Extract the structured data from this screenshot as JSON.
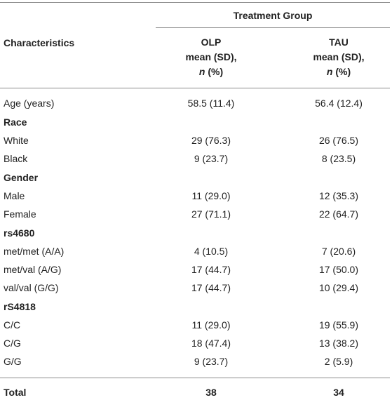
{
  "header": {
    "group_title": "Treatment Group",
    "characteristics": "Characteristics",
    "olp": {
      "line1": "OLP",
      "line2": "mean (SD),",
      "line3_n": "n",
      "line3_pct": " (%)"
    },
    "tau": {
      "line1": "TAU",
      "line2": "mean (SD),",
      "line3_n": "n",
      "line3_pct": " (%)"
    }
  },
  "rows": [
    {
      "label": "Age (years)",
      "olp": "58.5 (11.4)",
      "tau": "56.4 (12.4)",
      "section": false
    },
    {
      "label": "Race",
      "olp": "",
      "tau": "",
      "section": true
    },
    {
      "label": "White",
      "olp": "29 (76.3)",
      "tau": "26 (76.5)",
      "section": false
    },
    {
      "label": "Black",
      "olp": "9 (23.7)",
      "tau": "8 (23.5)",
      "section": false
    },
    {
      "label": "Gender",
      "olp": "",
      "tau": "",
      "section": true
    },
    {
      "label": "Male",
      "olp": "11 (29.0)",
      "tau": "12 (35.3)",
      "section": false
    },
    {
      "label": "Female",
      "olp": "27 (71.1)",
      "tau": "22 (64.7)",
      "section": false
    },
    {
      "label": "rs4680",
      "olp": "",
      "tau": "",
      "section": true
    },
    {
      "label": "met/met (A/A)",
      "olp": "4 (10.5)",
      "tau": "7 (20.6)",
      "section": false
    },
    {
      "label": "met/val (A/G)",
      "olp": "17 (44.7)",
      "tau": "17 (50.0)",
      "section": false
    },
    {
      "label": "val/val (G/G)",
      "olp": "17 (44.7)",
      "tau": "10 (29.4)",
      "section": false
    },
    {
      "label": "rS4818",
      "olp": "",
      "tau": "",
      "section": true
    },
    {
      "label": "C/C",
      "olp": "11 (29.0)",
      "tau": "19 (55.9)",
      "section": false
    },
    {
      "label": "C/G",
      "olp": "18 (47.4)",
      "tau": "13 (38.2)",
      "section": false
    },
    {
      "label": "G/G",
      "olp": "9 (23.7)",
      "tau": "2 (5.9)",
      "section": false
    }
  ],
  "total": {
    "label": "Total",
    "olp": "38",
    "tau": "34"
  }
}
